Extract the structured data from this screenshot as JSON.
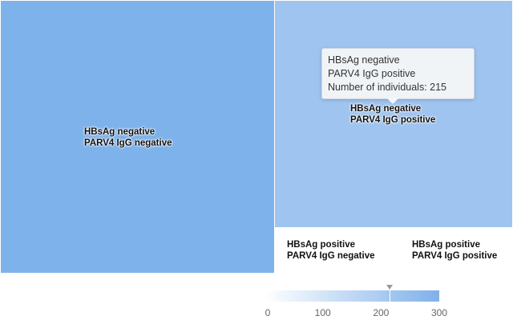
{
  "chart_data": {
    "type": "treemap",
    "title": "",
    "cells": [
      {
        "labels": [
          "HBsAg negative",
          "PARV4 IgG negative"
        ],
        "value": 270,
        "color": "#7eb2ea"
      },
      {
        "labels": [
          "HBsAg negative",
          "PARV4 IgG positive"
        ],
        "value": 215,
        "color": "#9fc4ef"
      },
      {
        "labels": [
          "HBsAg positive",
          "PARV4 IgG negative"
        ],
        "value": 5,
        "color": "#ffffff"
      },
      {
        "labels": [
          "HBsAg positive",
          "PARV4 IgG positive"
        ],
        "value": 5,
        "color": "#ffffff"
      }
    ],
    "color_axis": {
      "min": 0,
      "max": 300,
      "ticks": [
        "0",
        "100",
        "200",
        "300"
      ],
      "min_color": "#ffffff",
      "max_color": "#7fb1ea",
      "marker_value": 215
    },
    "grid": false,
    "legend": "bottom-right"
  },
  "tooltip": {
    "line1": "HBsAg negative",
    "line2": "PARV4 IgG positive",
    "line3": "Number of individuals: 215"
  }
}
